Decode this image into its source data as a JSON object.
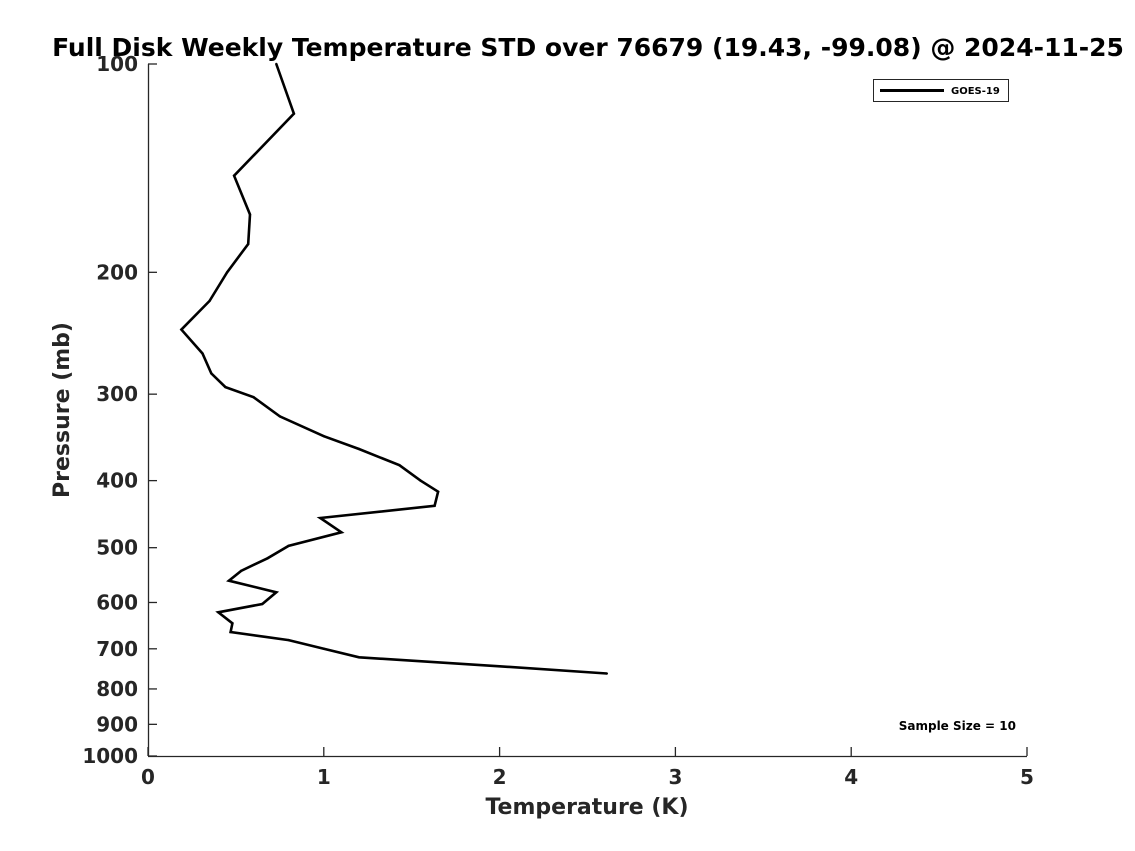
{
  "chart_data": {
    "type": "line",
    "title": "Full Disk Weekly Temperature STD over 76679 (19.43, -99.08) @ 2024-11-25",
    "xlabel": "Temperature (K)",
    "ylabel": "Pressure (mb)",
    "xlim": [
      0,
      5
    ],
    "ylim": [
      1000,
      100
    ],
    "y_scale": "log",
    "y_inverted": true,
    "grid": false,
    "x_ticks": [
      "0",
      "1",
      "2",
      "3",
      "4",
      "5"
    ],
    "y_ticks": [
      "100",
      "200",
      "300",
      "400",
      "500",
      "600",
      "700",
      "800",
      "900",
      "1000"
    ],
    "legend_position": "top-right",
    "annotation": "Sample Size = 10",
    "series": [
      {
        "name": "GOES-19",
        "color": "#000000",
        "points": [
          {
            "x": 0.73,
            "y": 100
          },
          {
            "x": 0.83,
            "y": 118
          },
          {
            "x": 0.49,
            "y": 145
          },
          {
            "x": 0.58,
            "y": 165
          },
          {
            "x": 0.57,
            "y": 182
          },
          {
            "x": 0.45,
            "y": 200
          },
          {
            "x": 0.35,
            "y": 220
          },
          {
            "x": 0.19,
            "y": 242
          },
          {
            "x": 0.31,
            "y": 262
          },
          {
            "x": 0.36,
            "y": 280
          },
          {
            "x": 0.44,
            "y": 293
          },
          {
            "x": 0.6,
            "y": 303
          },
          {
            "x": 0.75,
            "y": 323
          },
          {
            "x": 1.0,
            "y": 345
          },
          {
            "x": 1.2,
            "y": 360
          },
          {
            "x": 1.43,
            "y": 380
          },
          {
            "x": 1.55,
            "y": 400
          },
          {
            "x": 1.65,
            "y": 415
          },
          {
            "x": 1.63,
            "y": 435
          },
          {
            "x": 0.98,
            "y": 453
          },
          {
            "x": 1.1,
            "y": 475
          },
          {
            "x": 0.8,
            "y": 497
          },
          {
            "x": 0.68,
            "y": 518
          },
          {
            "x": 0.53,
            "y": 540
          },
          {
            "x": 0.46,
            "y": 558
          },
          {
            "x": 0.73,
            "y": 580
          },
          {
            "x": 0.65,
            "y": 603
          },
          {
            "x": 0.4,
            "y": 620
          },
          {
            "x": 0.48,
            "y": 643
          },
          {
            "x": 0.47,
            "y": 662
          },
          {
            "x": 0.8,
            "y": 680
          },
          {
            "x": 1.0,
            "y": 700
          },
          {
            "x": 1.2,
            "y": 720
          },
          {
            "x": 2.0,
            "y": 742
          },
          {
            "x": 2.61,
            "y": 760
          }
        ]
      }
    ]
  }
}
